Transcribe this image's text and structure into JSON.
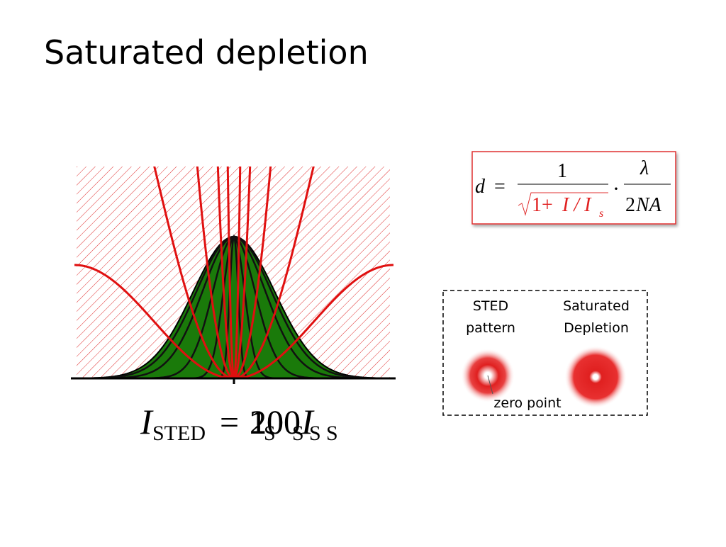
{
  "title": "Saturated depletion",
  "formula": {
    "lhs": "d",
    "equals": "=",
    "numerator": "1",
    "root_prefix": "1+",
    "ratio": "I / I",
    "ratio_subscript": "s",
    "dot": "·",
    "lambda": "λ",
    "factor_number": "2",
    "factor_letters": "NA"
  },
  "caption": {
    "symbol": "I",
    "subscript": "STED",
    "equals": "=",
    "multipliers": [
      "1",
      "2",
      "10",
      "100"
    ],
    "unit_symbol": "I",
    "unit_subscript": "S"
  },
  "legend": {
    "sted_label": [
      "STED",
      "pattern"
    ],
    "saturated_label": [
      "Saturated",
      "Depletion"
    ],
    "zero_point": "zero point"
  }
}
